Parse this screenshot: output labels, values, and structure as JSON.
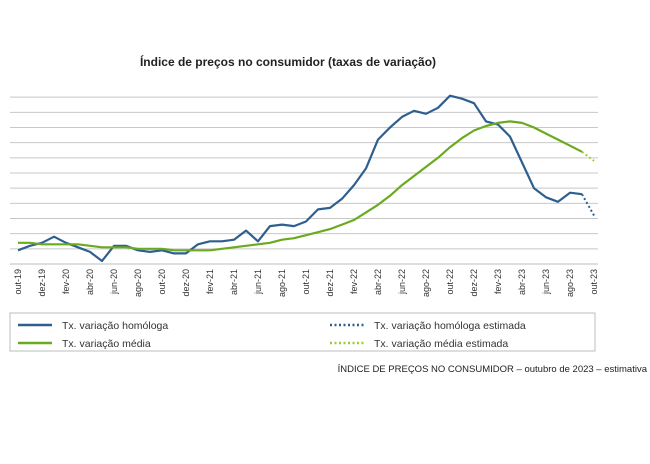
{
  "chart_data": {
    "type": "line",
    "title": "Índice de preços no consumidor  (taxas  de variação)",
    "xlabel": "",
    "ylabel": "",
    "x_tick_labels": [
      "out-19",
      "dez-19",
      "fev-20",
      "abr-20",
      "jun-20",
      "ago-20",
      "out-20",
      "dez-20",
      "fev-21",
      "abr-21",
      "jun-21",
      "ago-21",
      "out-21",
      "dez-21",
      "fev-22",
      "abr-22",
      "jun-22",
      "ago-22",
      "out-22",
      "dez-22",
      "fev-23",
      "abr-23",
      "jun-23",
      "ago-23",
      "out-23"
    ],
    "ylim": [
      -1,
      11
    ],
    "y_gridlines": [
      0,
      1,
      2,
      3,
      4,
      5,
      6,
      7,
      8,
      9,
      10
    ],
    "y_tick_labels_visible": false,
    "grid": true,
    "series": [
      {
        "name": "Tx. variação homóloga",
        "color": "#2e5f8e",
        "style": "solid",
        "x": [
          "out-19",
          "nov-19",
          "dez-19",
          "jan-20",
          "fev-20",
          "mar-20",
          "abr-20",
          "mai-20",
          "jun-20",
          "jul-20",
          "ago-20",
          "set-20",
          "out-20",
          "nov-20",
          "dez-20",
          "jan-21",
          "fev-21",
          "mar-21",
          "abr-21",
          "mai-21",
          "jun-21",
          "jul-21",
          "ago-21",
          "set-21",
          "out-21",
          "nov-21",
          "dez-21",
          "jan-22",
          "fev-22",
          "mar-22",
          "abr-22",
          "mai-22",
          "jun-22",
          "jul-22",
          "ago-22",
          "set-22",
          "out-22",
          "nov-22",
          "dez-22",
          "jan-23",
          "fev-23",
          "mar-23",
          "abr-23",
          "mai-23",
          "jun-23",
          "jul-23",
          "ago-23",
          "set-23"
        ],
        "values": [
          -0.1,
          0.2,
          0.4,
          0.8,
          0.4,
          0.1,
          -0.2,
          -0.8,
          0.2,
          0.2,
          -0.1,
          -0.2,
          -0.1,
          -0.3,
          -0.3,
          0.3,
          0.5,
          0.5,
          0.6,
          1.2,
          0.5,
          1.5,
          1.6,
          1.5,
          1.8,
          2.6,
          2.7,
          3.3,
          4.2,
          5.3,
          7.2,
          8.0,
          8.7,
          9.1,
          8.9,
          9.3,
          10.1,
          9.9,
          9.6,
          8.4,
          8.2,
          7.4,
          5.7,
          4.0,
          3.4,
          3.1,
          3.7,
          3.6
        ]
      },
      {
        "name": "Tx. variação homóloga estimada",
        "color": "#2e5f8e",
        "style": "dotted",
        "x": [
          "set-23",
          "out-23"
        ],
        "values": [
          3.6,
          2.2
        ]
      },
      {
        "name": "Tx. variação média",
        "color": "#6aaa1e",
        "style": "solid",
        "x": [
          "out-19",
          "nov-19",
          "dez-19",
          "jan-20",
          "fev-20",
          "mar-20",
          "abr-20",
          "mai-20",
          "jun-20",
          "jul-20",
          "ago-20",
          "set-20",
          "out-20",
          "nov-20",
          "dez-20",
          "jan-21",
          "fev-21",
          "mar-21",
          "abr-21",
          "mai-21",
          "jun-21",
          "jul-21",
          "ago-21",
          "set-21",
          "out-21",
          "nov-21",
          "dez-21",
          "jan-22",
          "fev-22",
          "mar-22",
          "abr-22",
          "mai-22",
          "jun-22",
          "jul-22",
          "ago-22",
          "set-22",
          "out-22",
          "nov-22",
          "dez-22",
          "jan-23",
          "fev-23",
          "mar-23",
          "abr-23",
          "mai-23",
          "jun-23",
          "jul-23",
          "ago-23",
          "set-23"
        ],
        "values": [
          0.4,
          0.4,
          0.3,
          0.3,
          0.3,
          0.3,
          0.2,
          0.1,
          0.1,
          0.1,
          0.0,
          0.0,
          0.0,
          -0.1,
          -0.1,
          -0.1,
          -0.1,
          0.0,
          0.1,
          0.2,
          0.3,
          0.4,
          0.6,
          0.7,
          0.9,
          1.1,
          1.3,
          1.6,
          1.9,
          2.4,
          2.9,
          3.5,
          4.2,
          4.8,
          5.4,
          6.0,
          6.7,
          7.3,
          7.8,
          8.1,
          8.3,
          8.4,
          8.3,
          8.0,
          7.6,
          7.2,
          6.8,
          6.4
        ]
      },
      {
        "name": "Tx. variação média  estimada",
        "color": "#9acd32",
        "style": "dotted",
        "x": [
          "set-23",
          "out-23"
        ],
        "values": [
          6.4,
          5.8
        ]
      }
    ],
    "legend_position": "bottom"
  },
  "caption": "ÍNDICE DE PREÇOS NO CONSUMIDOR – outubro de 2023 – estimativa"
}
